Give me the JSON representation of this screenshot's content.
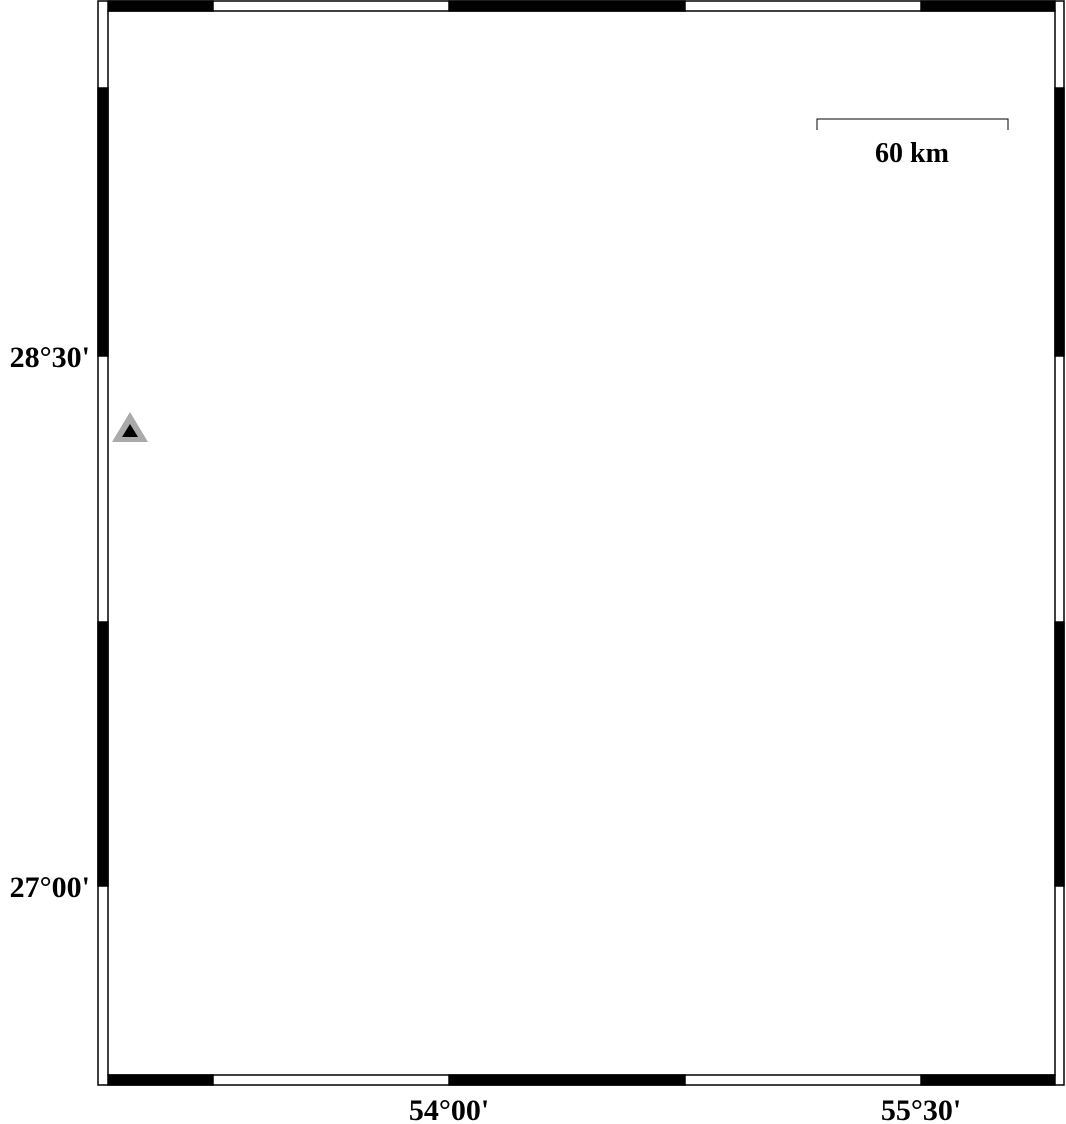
{
  "map": {
    "colors": {
      "sea": "#5aaffb",
      "coastline": "#1a1a7a",
      "border": "#000000",
      "station_outer": "#aaaaaa",
      "station_inner": "#000000"
    },
    "y_labels": [
      "28°30'",
      "27°00'"
    ],
    "x_labels": [
      "54°00'",
      "55°30'"
    ],
    "scale_bar": {
      "label": "60 km"
    },
    "station": {
      "icon": "triangle-icon"
    }
  }
}
